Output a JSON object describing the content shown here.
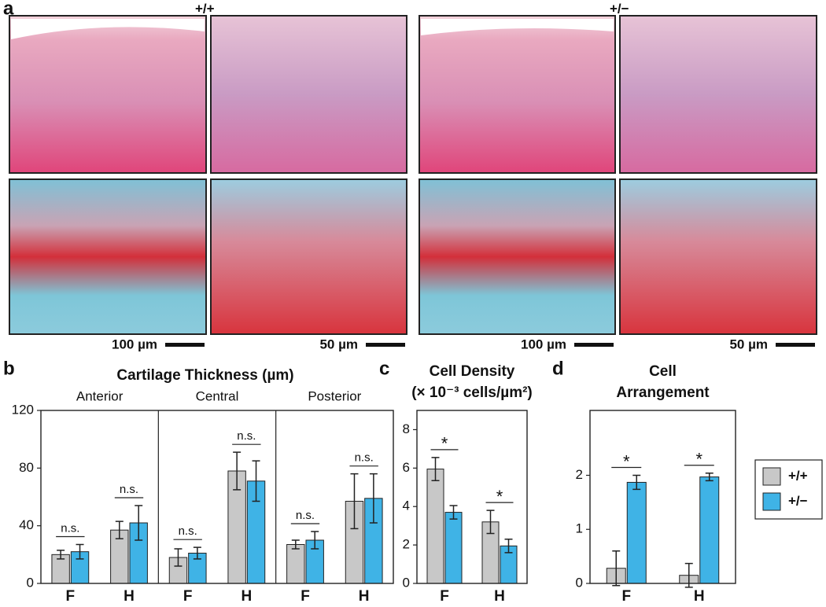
{
  "figure": {
    "panel_a": {
      "label": "a",
      "genotypes": [
        "+/+",
        "+/−"
      ],
      "scale_bars": [
        "100 µm",
        "50 µm",
        "100 µm",
        "50 µm"
      ]
    }
  },
  "chart_data": [
    {
      "type": "bar",
      "panel": "b",
      "title": [
        "Cartilage Thickness (µm)"
      ],
      "groups": [
        "Anterior",
        "Central",
        "Posterior"
      ],
      "categories": [
        "F",
        "H",
        "F",
        "H",
        "F",
        "H"
      ],
      "series": [
        {
          "color": "#c8c8c8",
          "values": [
            20,
            37,
            18,
            78,
            27,
            57
          ],
          "errors": [
            3,
            6,
            6,
            13,
            3,
            19
          ]
        },
        {
          "color": "#3fb3e6",
          "values": [
            22,
            42,
            21,
            71,
            30,
            59
          ],
          "errors": [
            5,
            12,
            4,
            14,
            6,
            17
          ]
        }
      ],
      "annotations": [
        "n.s.",
        "n.s.",
        "n.s.",
        "n.s.",
        "n.s.",
        "n.s."
      ],
      "ylim": [
        0,
        120
      ],
      "yticks": [
        0,
        40,
        80,
        120
      ]
    },
    {
      "type": "bar",
      "panel": "c",
      "title": [
        "Cell Density",
        "(× 10⁻³ cells/µm²)"
      ],
      "categories": [
        "F",
        "H"
      ],
      "series": [
        {
          "color": "#c8c8c8",
          "values": [
            5.95,
            3.2
          ],
          "errors": [
            0.6,
            0.6
          ]
        },
        {
          "color": "#3fb3e6",
          "values": [
            3.7,
            1.95
          ],
          "errors": [
            0.35,
            0.35
          ]
        }
      ],
      "annotations": [
        "*",
        "*"
      ],
      "ylim": [
        0,
        9
      ],
      "yticks": [
        0,
        2,
        4,
        6,
        8
      ]
    },
    {
      "type": "bar",
      "panel": "d",
      "title": [
        "Cell",
        "Arrangement"
      ],
      "categories": [
        "F",
        "H"
      ],
      "series": [
        {
          "name": "+/+",
          "color": "#c8c8c8",
          "values": [
            0.28,
            0.15
          ],
          "errors": [
            0.32,
            0.22
          ]
        },
        {
          "name": "+/−",
          "color": "#3fb3e6",
          "values": [
            1.87,
            1.97
          ],
          "errors": [
            0.13,
            0.07
          ]
        }
      ],
      "annotations": [
        "*",
        "*"
      ],
      "ylim": [
        0,
        3.2
      ],
      "yticks": [
        0,
        1,
        2
      ],
      "legend": "right"
    }
  ]
}
